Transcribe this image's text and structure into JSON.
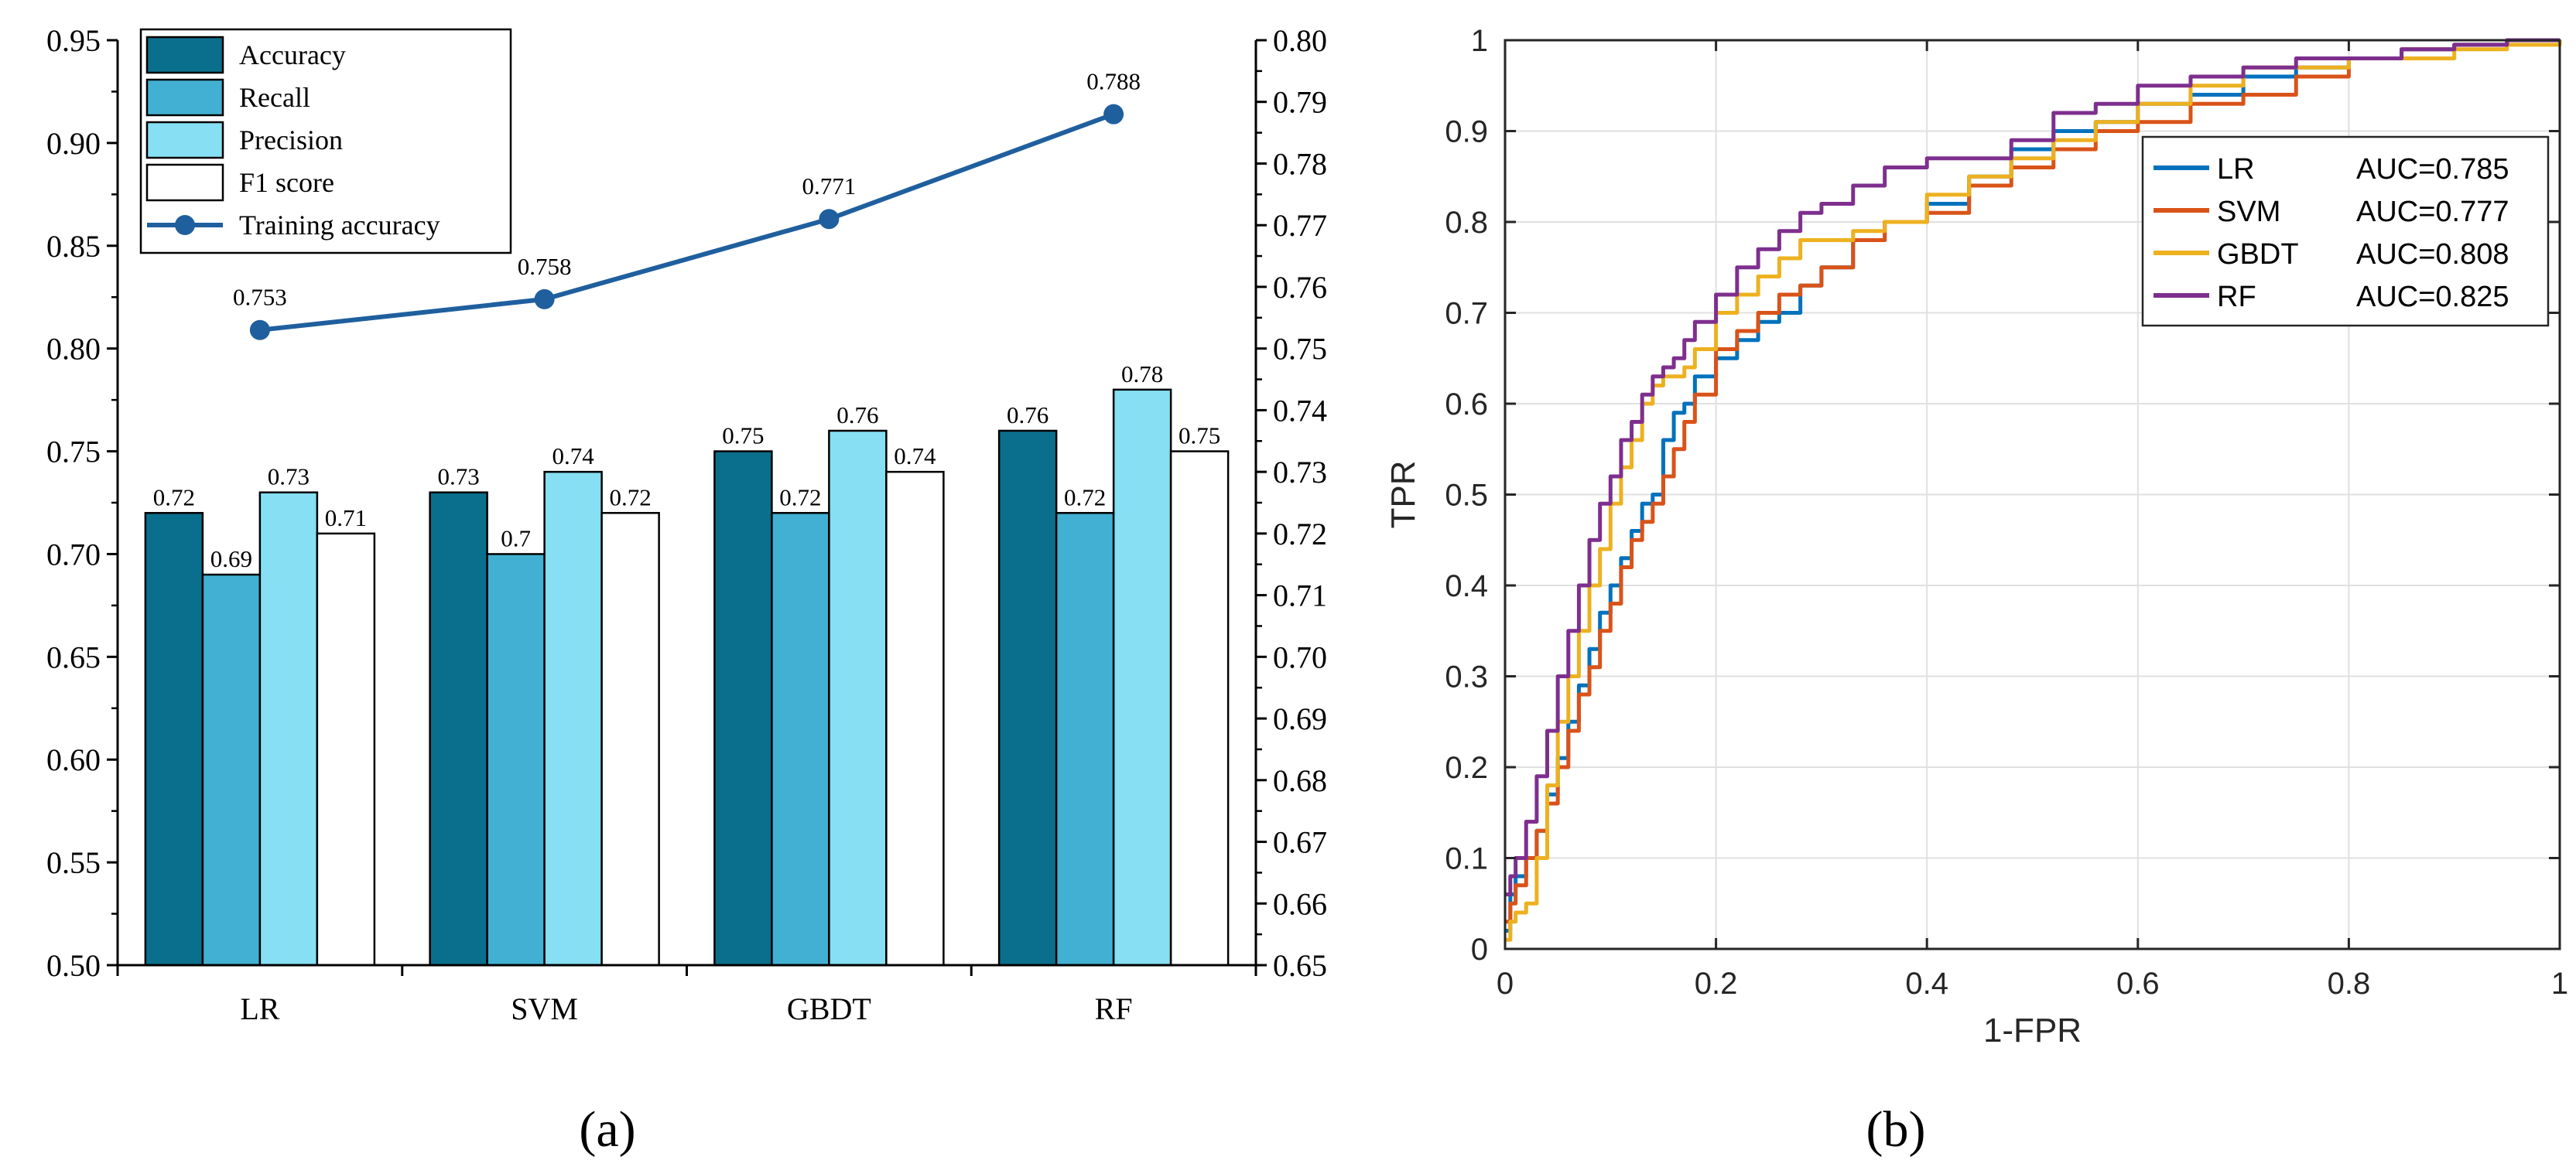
{
  "figure": {
    "panel_a_caption": "(a)",
    "panel_b_caption": "(b)"
  },
  "chart_data": [
    {
      "type": "bar",
      "categories": [
        "LR",
        "SVM",
        "GBDT",
        "RF"
      ],
      "series": [
        {
          "name": "Accuracy",
          "values": [
            0.72,
            0.73,
            0.75,
            0.76
          ],
          "labels": [
            "0.72",
            "0.73",
            "0.75",
            "0.76"
          ],
          "color": "#0A6F8C"
        },
        {
          "name": "Recall",
          "values": [
            0.69,
            0.7,
            0.72,
            0.72
          ],
          "labels": [
            "0.69",
            "0.7",
            "0.72",
            "0.72"
          ],
          "color": "#42B0D2"
        },
        {
          "name": "Precision",
          "values": [
            0.73,
            0.74,
            0.76,
            0.78
          ],
          "labels": [
            "0.73",
            "0.74",
            "0.76",
            "0.78"
          ],
          "color": "#86DFF2"
        },
        {
          "name": "F1 score",
          "values": [
            0.71,
            0.72,
            0.74,
            0.75
          ],
          "labels": [
            "0.71",
            "0.72",
            "0.74",
            "0.75"
          ],
          "color": "#FFFFFF"
        }
      ],
      "line_series": {
        "name": "Training accuracy",
        "axis": "right",
        "values": [
          0.753,
          0.758,
          0.771,
          0.788
        ],
        "labels": [
          "0.753",
          "0.758",
          "0.771",
          "0.788"
        ],
        "color": "#1F5F9E"
      },
      "ylim": [
        0.5,
        0.95
      ],
      "yticks": [
        "0.50",
        "0.55",
        "0.60",
        "0.65",
        "0.70",
        "0.75",
        "0.80",
        "0.85",
        "0.90",
        "0.95"
      ],
      "y2lim": [
        0.65,
        0.8
      ],
      "y2ticks": [
        "0.65",
        "0.66",
        "0.67",
        "0.68",
        "0.69",
        "0.70",
        "0.71",
        "0.72",
        "0.73",
        "0.74",
        "0.75",
        "0.76",
        "0.77",
        "0.78",
        "0.79",
        "0.80"
      ],
      "xlabel": "",
      "ylabel": "",
      "legend": "top-left",
      "grid": false
    },
    {
      "type": "line",
      "xlabel": "1-FPR",
      "ylabel": "TPR",
      "xlim": [
        0,
        1
      ],
      "ylim": [
        0,
        1
      ],
      "xticks": [
        "0",
        "0.2",
        "0.4",
        "0.6",
        "0.8",
        "1"
      ],
      "yticks": [
        "0",
        "0.1",
        "0.2",
        "0.3",
        "0.4",
        "0.5",
        "0.6",
        "0.7",
        "0.8",
        "0.9",
        "1"
      ],
      "grid": true,
      "legend": "top-right",
      "series": [
        {
          "name": "LR",
          "auc_label": "AUC=0.785",
          "color": "#0072BD",
          "x": [
            0,
            0.005,
            0.01,
            0.02,
            0.03,
            0.04,
            0.05,
            0.06,
            0.07,
            0.08,
            0.09,
            0.1,
            0.11,
            0.12,
            0.13,
            0.14,
            0.15,
            0.16,
            0.17,
            0.18,
            0.2,
            0.22,
            0.24,
            0.26,
            0.28,
            0.3,
            0.33,
            0.36,
            0.4,
            0.44,
            0.48,
            0.52,
            0.56,
            0.6,
            0.65,
            0.7,
            0.75,
            0.8,
            0.85,
            0.9,
            0.95,
            1.0
          ],
          "y": [
            0.02,
            0.06,
            0.08,
            0.1,
            0.13,
            0.17,
            0.21,
            0.25,
            0.29,
            0.33,
            0.37,
            0.4,
            0.43,
            0.46,
            0.49,
            0.5,
            0.56,
            0.59,
            0.6,
            0.63,
            0.65,
            0.67,
            0.69,
            0.7,
            0.73,
            0.75,
            0.78,
            0.8,
            0.82,
            0.85,
            0.88,
            0.9,
            0.91,
            0.93,
            0.94,
            0.96,
            0.97,
            0.98,
            0.99,
            0.995,
            1.0,
            1.0
          ]
        },
        {
          "name": "SVM",
          "auc_label": "AUC=0.777",
          "color": "#D95319",
          "x": [
            0,
            0.005,
            0.01,
            0.02,
            0.03,
            0.04,
            0.05,
            0.06,
            0.07,
            0.08,
            0.09,
            0.1,
            0.11,
            0.12,
            0.13,
            0.14,
            0.15,
            0.16,
            0.17,
            0.18,
            0.2,
            0.22,
            0.24,
            0.26,
            0.28,
            0.3,
            0.33,
            0.36,
            0.4,
            0.44,
            0.48,
            0.52,
            0.56,
            0.6,
            0.65,
            0.7,
            0.75,
            0.8,
            0.85,
            0.9,
            0.95,
            1.0
          ],
          "y": [
            0.03,
            0.05,
            0.07,
            0.1,
            0.13,
            0.16,
            0.2,
            0.24,
            0.28,
            0.31,
            0.35,
            0.38,
            0.42,
            0.45,
            0.47,
            0.49,
            0.52,
            0.55,
            0.58,
            0.61,
            0.66,
            0.68,
            0.7,
            0.72,
            0.73,
            0.75,
            0.78,
            0.8,
            0.81,
            0.84,
            0.86,
            0.88,
            0.9,
            0.91,
            0.93,
            0.94,
            0.96,
            0.98,
            0.99,
            0.995,
            1.0,
            1.0
          ]
        },
        {
          "name": "GBDT",
          "auc_label": "AUC=0.808",
          "color": "#EDB120",
          "x": [
            0,
            0.005,
            0.01,
            0.02,
            0.03,
            0.04,
            0.05,
            0.06,
            0.07,
            0.08,
            0.09,
            0.1,
            0.11,
            0.12,
            0.13,
            0.14,
            0.15,
            0.16,
            0.17,
            0.18,
            0.2,
            0.22,
            0.24,
            0.26,
            0.28,
            0.3,
            0.33,
            0.36,
            0.4,
            0.44,
            0.48,
            0.52,
            0.56,
            0.6,
            0.65,
            0.7,
            0.75,
            0.8,
            0.85,
            0.9,
            0.95,
            1.0
          ],
          "y": [
            0.01,
            0.03,
            0.04,
            0.05,
            0.1,
            0.18,
            0.25,
            0.3,
            0.35,
            0.4,
            0.44,
            0.49,
            0.53,
            0.56,
            0.6,
            0.62,
            0.63,
            0.63,
            0.64,
            0.66,
            0.7,
            0.72,
            0.74,
            0.76,
            0.78,
            0.78,
            0.79,
            0.8,
            0.83,
            0.85,
            0.87,
            0.89,
            0.91,
            0.93,
            0.95,
            0.97,
            0.97,
            0.98,
            0.98,
            0.99,
            0.995,
            1.0
          ]
        },
        {
          "name": "RF",
          "auc_label": "AUC=0.825",
          "color": "#7E2F8E",
          "x": [
            0,
            0.005,
            0.01,
            0.02,
            0.03,
            0.04,
            0.05,
            0.06,
            0.07,
            0.08,
            0.09,
            0.1,
            0.11,
            0.12,
            0.13,
            0.14,
            0.15,
            0.16,
            0.17,
            0.18,
            0.2,
            0.22,
            0.24,
            0.26,
            0.28,
            0.3,
            0.33,
            0.36,
            0.4,
            0.44,
            0.48,
            0.52,
            0.56,
            0.6,
            0.65,
            0.7,
            0.75,
            0.8,
            0.85,
            0.9,
            0.95,
            1.0
          ],
          "y": [
            0.06,
            0.08,
            0.1,
            0.14,
            0.19,
            0.24,
            0.3,
            0.35,
            0.4,
            0.45,
            0.49,
            0.52,
            0.56,
            0.58,
            0.61,
            0.63,
            0.64,
            0.65,
            0.67,
            0.69,
            0.72,
            0.75,
            0.77,
            0.79,
            0.81,
            0.82,
            0.84,
            0.86,
            0.87,
            0.87,
            0.89,
            0.92,
            0.93,
            0.95,
            0.96,
            0.97,
            0.98,
            0.98,
            0.99,
            0.995,
            1.0,
            1.0
          ]
        }
      ]
    }
  ]
}
